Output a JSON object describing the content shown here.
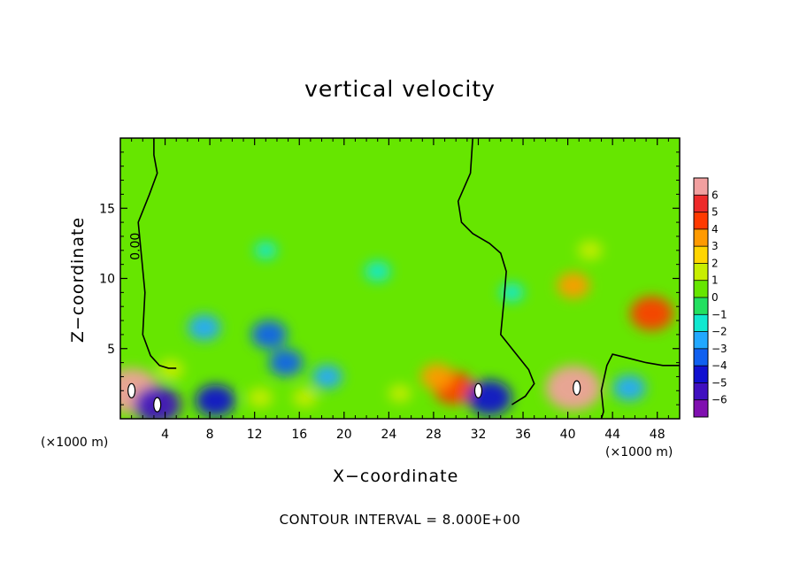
{
  "chart_data": {
    "type": "heatmap",
    "title": "vertical velocity",
    "xlabel": "X−coordinate",
    "ylabel": "Z−coordinate",
    "x_unit_label": "(×1000 m)",
    "footer": "CONTOUR INTERVAL = 8.000E+00",
    "xlim": [
      0,
      50
    ],
    "ylim": [
      0,
      20
    ],
    "x_ticks": [
      4,
      8,
      12,
      16,
      20,
      24,
      28,
      32,
      36,
      40,
      44,
      48
    ],
    "y_ticks": [
      5,
      10,
      15
    ],
    "contour_label": "0.00",
    "colorbar": {
      "levels": [
        6,
        5,
        4,
        3,
        2,
        1,
        0,
        -1,
        -2,
        -3,
        -4,
        -5,
        -6
      ],
      "tick_labels": [
        "6",
        "5",
        "4",
        "3",
        "2",
        "1",
        "0",
        "−1",
        "−2",
        "−3",
        "−4",
        "−5",
        "−6"
      ],
      "colors": [
        "#f2a0a0",
        "#ee2a2a",
        "#ff3a00",
        "#ff9a00",
        "#ffd500",
        "#c8ee00",
        "#66e600",
        "#22e060",
        "#10e8d0",
        "#22a8ff",
        "#1060f0",
        "#1010d0",
        "#4010c0",
        "#8010b0"
      ]
    },
    "features": [
      {
        "x": 1.0,
        "z": 2.0,
        "value": 7.0
      },
      {
        "x": 3.3,
        "z": 1.0,
        "value": -5.5
      },
      {
        "x": 8.5,
        "z": 1.3,
        "value": -4.2
      },
      {
        "x": 7.5,
        "z": 6.5,
        "value": -3.0
      },
      {
        "x": 13.3,
        "z": 6.0,
        "value": -3.5
      },
      {
        "x": 14.8,
        "z": 4.0,
        "value": -3.2
      },
      {
        "x": 18.5,
        "z": 3.0,
        "value": -2.5
      },
      {
        "x": 29.8,
        "z": 2.2,
        "value": 4.5
      },
      {
        "x": 28.3,
        "z": 3.0,
        "value": 3.0
      },
      {
        "x": 33.0,
        "z": 1.5,
        "value": -5.0
      },
      {
        "x": 40.5,
        "z": 2.2,
        "value": 7.0
      },
      {
        "x": 40.5,
        "z": 9.5,
        "value": 3.0
      },
      {
        "x": 42.0,
        "z": 12.0,
        "value": 1.5
      },
      {
        "x": 47.5,
        "z": 7.5,
        "value": 4.8
      },
      {
        "x": 45.5,
        "z": 2.2,
        "value": -3.0
      },
      {
        "x": 23.0,
        "z": 10.5,
        "value": -1.8
      },
      {
        "x": 13.0,
        "z": 12.0,
        "value": -1.2
      },
      {
        "x": 35.0,
        "z": 9.0,
        "value": -1.5
      },
      {
        "x": 4.5,
        "z": 3.5,
        "value": 1.8
      },
      {
        "x": 16.5,
        "z": 1.5,
        "value": 1.5
      },
      {
        "x": 25.0,
        "z": 1.8,
        "value": 1.2
      },
      {
        "x": 12.5,
        "z": 1.5,
        "value": 1.6
      }
    ],
    "zero_contour_main": [
      [
        3.0,
        20
      ],
      [
        3.0,
        18.8
      ],
      [
        3.3,
        17.5
      ],
      [
        2.6,
        16.0
      ],
      [
        1.6,
        14.0
      ],
      [
        1.9,
        11.5
      ],
      [
        2.2,
        9.0
      ],
      [
        2.0,
        6.0
      ],
      [
        2.7,
        4.5
      ],
      [
        3.5,
        3.8
      ],
      [
        4.3,
        3.6
      ],
      [
        5.0,
        3.6
      ]
    ],
    "zero_contour_mid": [
      [
        31.5,
        20
      ],
      [
        31.3,
        17.5
      ],
      [
        30.2,
        15.5
      ],
      [
        30.5,
        14.0
      ],
      [
        31.5,
        13.2
      ],
      [
        33.0,
        12.5
      ],
      [
        34.0,
        11.8
      ],
      [
        34.5,
        10.5
      ],
      [
        34.3,
        8.5
      ],
      [
        34.0,
        6.0
      ],
      [
        35.2,
        4.8
      ],
      [
        36.5,
        3.5
      ],
      [
        37.0,
        2.5
      ],
      [
        36.2,
        1.6
      ],
      [
        35.0,
        1.0
      ]
    ],
    "zero_contour_bottom": [
      [
        50,
        3.8
      ],
      [
        48.5,
        3.8
      ],
      [
        47.0,
        4.0
      ],
      [
        45.5,
        4.3
      ],
      [
        44.0,
        4.6
      ],
      [
        43.5,
        3.8
      ],
      [
        43.0,
        2.0
      ],
      [
        43.2,
        0.5
      ],
      [
        43.0,
        0
      ]
    ]
  }
}
